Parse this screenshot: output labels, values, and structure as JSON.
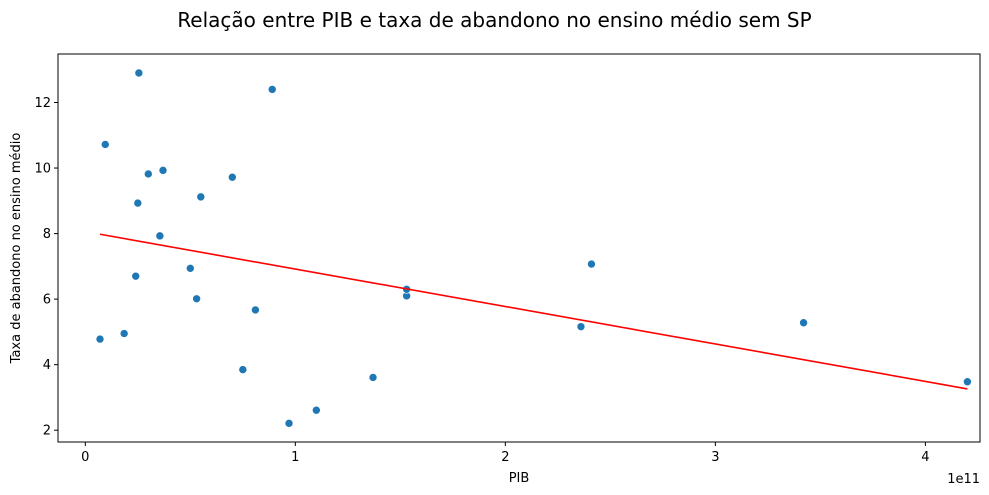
{
  "chart_data": {
    "type": "scatter",
    "title": "Relação entre PIB e taxa de abandono no ensino médio sem SP",
    "xlabel": "PIB",
    "ylabel": "Taxa de abandono no ensino médio",
    "x_offset_text": "1e11",
    "x_scale": 100000000000.0,
    "xlim": [
      -0.13,
      4.26
    ],
    "ylim": [
      1.64,
      13.48
    ],
    "x_ticks": [
      0,
      1,
      2,
      3,
      4
    ],
    "x_tick_labels": [
      "0",
      "1",
      "2",
      "3",
      "4"
    ],
    "y_ticks": [
      2,
      4,
      6,
      8,
      10,
      12
    ],
    "y_tick_labels": [
      "2",
      "4",
      "6",
      "8",
      "10",
      "12"
    ],
    "grid": false,
    "points": [
      {
        "x": 0.07,
        "y": 4.78
      },
      {
        "x": 0.095,
        "y": 10.72
      },
      {
        "x": 0.185,
        "y": 4.95
      },
      {
        "x": 0.24,
        "y": 6.7
      },
      {
        "x": 0.25,
        "y": 8.93
      },
      {
        "x": 0.255,
        "y": 12.9
      },
      {
        "x": 0.3,
        "y": 9.82
      },
      {
        "x": 0.355,
        "y": 7.93
      },
      {
        "x": 0.37,
        "y": 9.93
      },
      {
        "x": 0.5,
        "y": 6.94
      },
      {
        "x": 0.53,
        "y": 6.01
      },
      {
        "x": 0.55,
        "y": 9.12
      },
      {
        "x": 0.7,
        "y": 9.72
      },
      {
        "x": 0.75,
        "y": 3.85
      },
      {
        "x": 0.81,
        "y": 5.67
      },
      {
        "x": 0.89,
        "y": 12.4
      },
      {
        "x": 0.97,
        "y": 2.21
      },
      {
        "x": 1.1,
        "y": 2.61
      },
      {
        "x": 1.37,
        "y": 3.61
      },
      {
        "x": 1.53,
        "y": 6.1
      },
      {
        "x": 1.53,
        "y": 6.3
      },
      {
        "x": 2.36,
        "y": 5.16
      },
      {
        "x": 2.41,
        "y": 7.07
      },
      {
        "x": 3.42,
        "y": 5.28
      },
      {
        "x": 4.2,
        "y": 3.48
      }
    ],
    "trendline": {
      "x": [
        0.07,
        4.2
      ],
      "y": [
        7.98,
        3.26
      ]
    },
    "colors": {
      "points": "#1f77b4",
      "trendline": "#ff0000"
    }
  }
}
